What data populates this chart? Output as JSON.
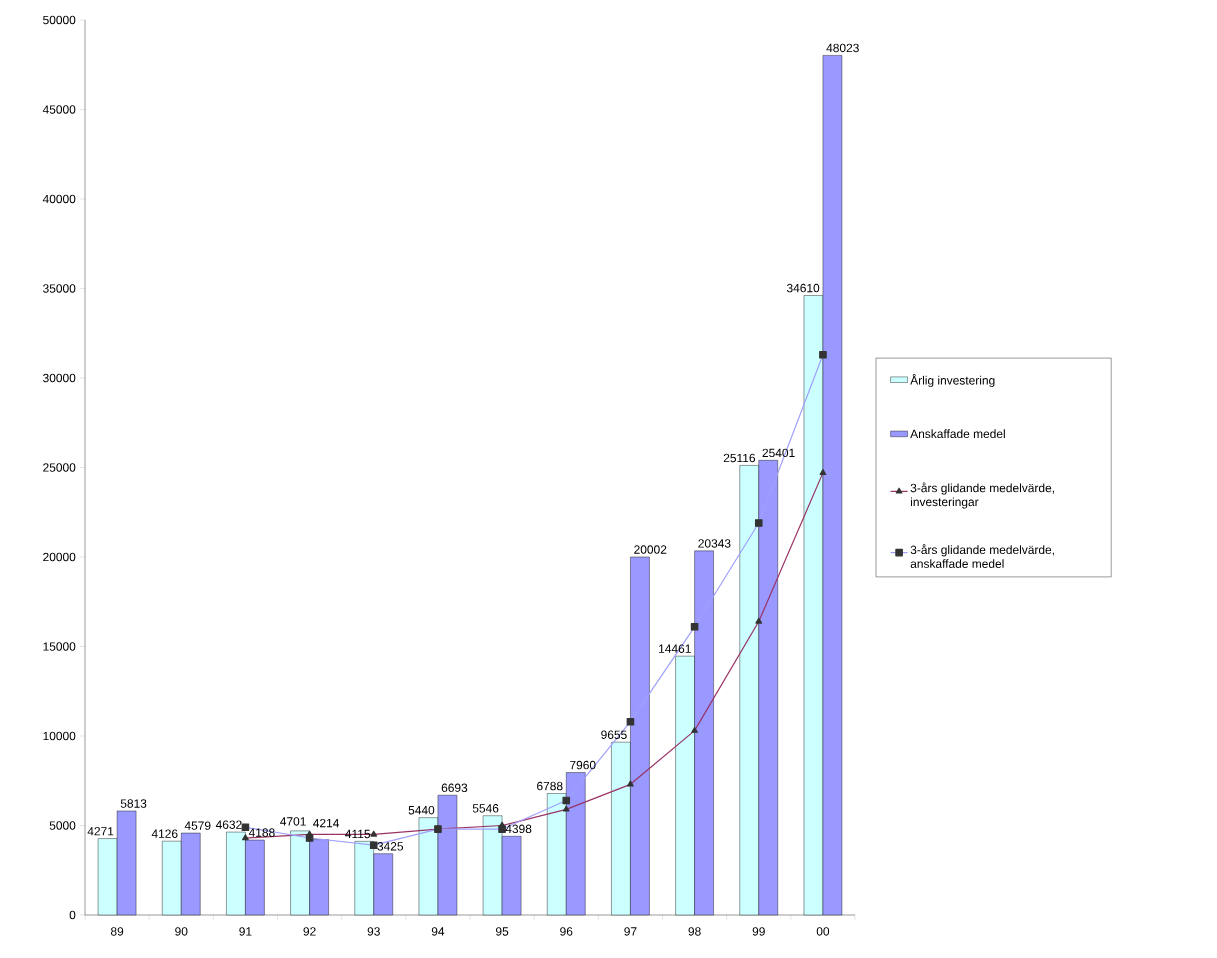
{
  "chart_data": {
    "type": "bar",
    "categories": [
      "89",
      "90",
      "91",
      "92",
      "93",
      "94",
      "95",
      "96",
      "97",
      "98",
      "99",
      "00"
    ],
    "ylim": [
      0,
      50000
    ],
    "yticks": [
      0,
      5000,
      10000,
      15000,
      20000,
      25000,
      30000,
      35000,
      40000,
      45000,
      50000
    ],
    "legend": "right",
    "series": [
      {
        "name": "Årlig investering",
        "color": "#ccffff",
        "values": [
          4271,
          4126,
          4632,
          4701,
          4115,
          5440,
          5546,
          6788,
          9655,
          14461,
          25116,
          34610
        ],
        "value_labels": [
          "4271",
          "4126",
          "4632",
          "4701",
          "4115",
          "5440",
          "5546",
          "6788",
          "9655",
          "14461",
          "25116",
          "34610"
        ]
      },
      {
        "name": "Anskaffade medel",
        "color": "#9999ff",
        "values": [
          5813,
          4579,
          4188,
          4214,
          3425,
          6693,
          4398,
          7960,
          20002,
          20343,
          25401,
          48023
        ],
        "value_labels": [
          "5813",
          "4579",
          "4188",
          "4214",
          "3425",
          "6693",
          "4398",
          "7960",
          "20002",
          "20343",
          "25401",
          "48023"
        ]
      },
      {
        "name": "3-års glidande medelvärde, investeringar",
        "type": "line",
        "marker": "triangle",
        "color": "#993366",
        "values": [
          null,
          null,
          4300,
          4500,
          4500,
          4800,
          5000,
          5900,
          7300,
          10300,
          16400,
          24700
        ]
      },
      {
        "name": "3-års glidande medelvärde, anskaffade medel",
        "type": "line",
        "marker": "square",
        "color": "#a0a0ff",
        "values": [
          null,
          null,
          4900,
          4300,
          3900,
          4800,
          4800,
          6400,
          10800,
          16100,
          21900,
          31300
        ]
      }
    ]
  }
}
